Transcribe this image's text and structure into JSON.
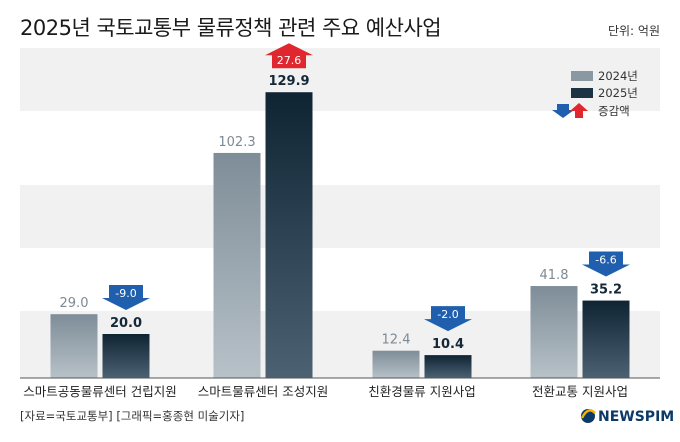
{
  "title": "2025년 국토교통부 물류정책 관련 주요 예산사업",
  "unit_label": "단위: 억원",
  "legend": {
    "prev": "2024년",
    "curr": "2025년",
    "change": "증감액"
  },
  "source": "[자료=국토교통부] [그래픽=홍종현 미술기자]",
  "brand": "NEWSPIM",
  "colors": {
    "prev_bar": "#8a98a2",
    "curr_bar": "#1c3344",
    "increase": "#e0262e",
    "decrease": "#1f5fae",
    "band": "#f1f1f1"
  },
  "chart_data": {
    "type": "bar",
    "categories": [
      "스마트공동물류센터 건립지원",
      "스마트물류센터 조성지원",
      "친환경물류 지원사업",
      "전환교통 지원사업"
    ],
    "series": [
      {
        "name": "2024년",
        "values": [
          29.0,
          102.3,
          12.4,
          41.8
        ],
        "labels": [
          "29.0",
          "102.3",
          "12.4",
          "41.8"
        ]
      },
      {
        "name": "2025년",
        "values": [
          20.0,
          129.9,
          10.4,
          35.2
        ],
        "labels": [
          "20.0",
          "129.9",
          "10.4",
          "35.2"
        ]
      }
    ],
    "change": [
      -9.0,
      27.6,
      -2.0,
      -6.6
    ],
    "change_labels": [
      "-9.0",
      "27.6",
      "-2.0",
      "-6.6"
    ],
    "ylim": [
      0,
      150
    ],
    "legend_position": "top-right"
  }
}
